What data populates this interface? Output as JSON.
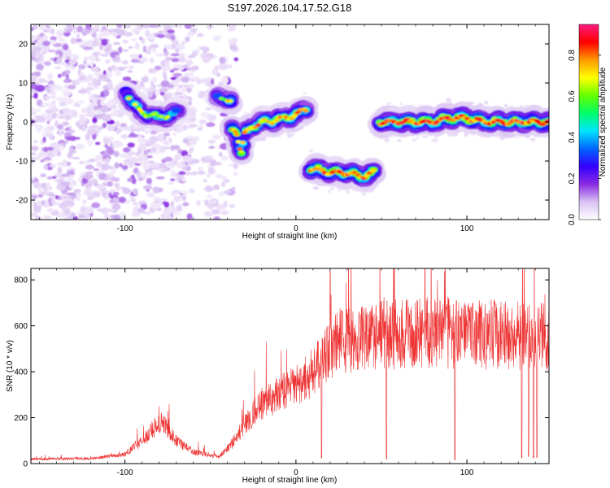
{
  "figure": {
    "title": "S197.2026.104.17.52.G18"
  },
  "chart_data": [
    {
      "type": "heatmap",
      "id": "spectrogram",
      "xlabel": "Height of straight line (km)",
      "ylabel": "Frequency (Hz)",
      "xlim": [
        -155,
        148
      ],
      "ylim": [
        -25,
        25
      ],
      "xticks": [
        -100,
        0,
        100
      ],
      "yticks": [
        -20,
        -10,
        0,
        10,
        20
      ],
      "grid": false,
      "colorbar": {
        "label": "Normalized spectral amplitude",
        "range": [
          0,
          0.95
        ],
        "ticks": [
          0.0,
          0.2,
          0.4,
          0.6,
          0.8
        ],
        "colors": [
          "#ffffff",
          "#d9c2f2",
          "#8a2be2",
          "#3300ff",
          "#0066ff",
          "#00e5ff",
          "#00ff66",
          "#66ff00",
          "#ffff00",
          "#ff9900",
          "#ff0000",
          "#ff1a80"
        ]
      },
      "ridge": [
        {
          "x": -100,
          "y": 8
        },
        {
          "x": -95,
          "y": 5
        },
        {
          "x": -90,
          "y": 2
        },
        {
          "x": -85,
          "y": 2
        },
        {
          "x": -80,
          "y": 1
        },
        {
          "x": -72,
          "y": 2
        },
        {
          "x": -45,
          "y": 7
        },
        {
          "x": -40,
          "y": 5
        },
        {
          "x": -35,
          "y": -2
        },
        {
          "x": -32,
          "y": -8
        },
        {
          "x": -30,
          "y": -3
        },
        {
          "x": -25,
          "y": -1
        },
        {
          "x": -20,
          "y": 0
        },
        {
          "x": -15,
          "y": 0
        },
        {
          "x": -10,
          "y": 1
        },
        {
          "x": -5,
          "y": 1
        },
        {
          "x": 0,
          "y": 2
        },
        {
          "x": 5,
          "y": 3
        },
        {
          "x": 10,
          "y": -12
        },
        {
          "x": 20,
          "y": -13
        },
        {
          "x": 30,
          "y": -13
        },
        {
          "x": 40,
          "y": -14
        },
        {
          "x": 45,
          "y": -13
        },
        {
          "x": 50,
          "y": 0
        },
        {
          "x": 60,
          "y": 0
        },
        {
          "x": 70,
          "y": 0
        },
        {
          "x": 80,
          "y": 0
        },
        {
          "x": 90,
          "y": 1
        },
        {
          "x": 100,
          "y": 1
        },
        {
          "x": 110,
          "y": 0
        },
        {
          "x": 120,
          "y": 0
        },
        {
          "x": 130,
          "y": 0
        },
        {
          "x": 140,
          "y": 0
        },
        {
          "x": 148,
          "y": 0
        }
      ]
    },
    {
      "type": "line",
      "id": "snr",
      "xlabel": "Height of straight line (km)",
      "ylabel": "SNR (10 * v/v)",
      "xlim": [
        -155,
        148
      ],
      "ylim": [
        0,
        850
      ],
      "xticks": [
        -100,
        0,
        100
      ],
      "yticks": [
        0,
        200,
        400,
        600,
        800
      ],
      "grid": false,
      "series": [
        {
          "name": "SNR",
          "color": "#ee3333",
          "envelope": [
            {
              "x": -155,
              "y": 20
            },
            {
              "x": -120,
              "y": 22
            },
            {
              "x": -100,
              "y": 40
            },
            {
              "x": -90,
              "y": 100
            },
            {
              "x": -82,
              "y": 160
            },
            {
              "x": -78,
              "y": 180
            },
            {
              "x": -70,
              "y": 100
            },
            {
              "x": -60,
              "y": 50
            },
            {
              "x": -45,
              "y": 30
            },
            {
              "x": -38,
              "y": 80
            },
            {
              "x": -30,
              "y": 170
            },
            {
              "x": -20,
              "y": 260
            },
            {
              "x": -10,
              "y": 300
            },
            {
              "x": 0,
              "y": 340
            },
            {
              "x": 10,
              "y": 400
            },
            {
              "x": 18,
              "y": 470
            },
            {
              "x": 25,
              "y": 530
            },
            {
              "x": 40,
              "y": 555
            },
            {
              "x": 60,
              "y": 565
            },
            {
              "x": 80,
              "y": 570
            },
            {
              "x": 100,
              "y": 565
            },
            {
              "x": 120,
              "y": 560
            },
            {
              "x": 148,
              "y": 555
            }
          ],
          "dips": [
            {
              "x": 15,
              "y": 20
            },
            {
              "x": 53,
              "y": 15
            },
            {
              "x": 93,
              "y": 15
            },
            {
              "x": 132,
              "y": 20
            },
            {
              "x": 136,
              "y": 30
            },
            {
              "x": 139,
              "y": 20
            },
            {
              "x": 141,
              "y": 25
            }
          ],
          "peak": {
            "x": 20,
            "y": 845
          }
        }
      ]
    }
  ]
}
